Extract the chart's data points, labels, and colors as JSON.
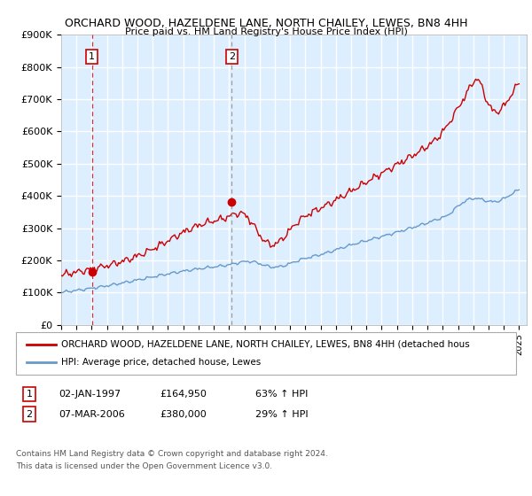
{
  "title": "ORCHARD WOOD, HAZELDENE LANE, NORTH CHAILEY, LEWES, BN8 4HH",
  "subtitle": "Price paid vs. HM Land Registry's House Price Index (HPI)",
  "ylim": [
    0,
    900000
  ],
  "xlim_start": 1995.0,
  "xlim_end": 2025.5,
  "yticks": [
    0,
    100000,
    200000,
    300000,
    400000,
    500000,
    600000,
    700000,
    800000,
    900000
  ],
  "ytick_labels": [
    "£0",
    "£100K",
    "£200K",
    "£300K",
    "£400K",
    "£500K",
    "£600K",
    "£700K",
    "£800K",
    "£900K"
  ],
  "xticks": [
    1995,
    1996,
    1997,
    1998,
    1999,
    2000,
    2001,
    2002,
    2003,
    2004,
    2005,
    2006,
    2007,
    2008,
    2009,
    2010,
    2011,
    2012,
    2013,
    2014,
    2015,
    2016,
    2017,
    2018,
    2019,
    2020,
    2021,
    2022,
    2023,
    2024,
    2025
  ],
  "sale1_year": 1997.02,
  "sale1_price": 164950,
  "sale1_label": "1",
  "sale1_date": "02-JAN-1997",
  "sale1_hpi": "63% ↑ HPI",
  "sale2_year": 2006.17,
  "sale2_price": 380000,
  "sale2_label": "2",
  "sale2_date": "07-MAR-2006",
  "sale2_hpi": "29% ↑ HPI",
  "red_line_color": "#cc0000",
  "blue_line_color": "#6699cc",
  "plot_bg_color": "#ddeeff",
  "grid_color": "#ffffff",
  "fig_bg_color": "#ffffff",
  "legend_line1": "ORCHARD WOOD, HAZELDENE LANE, NORTH CHAILEY, LEWES, BN8 4HH (detached hous",
  "legend_line2": "HPI: Average price, detached house, Lewes",
  "footer1": "Contains HM Land Registry data © Crown copyright and database right 2024.",
  "footer2": "This data is licensed under the Open Government Licence v3.0."
}
